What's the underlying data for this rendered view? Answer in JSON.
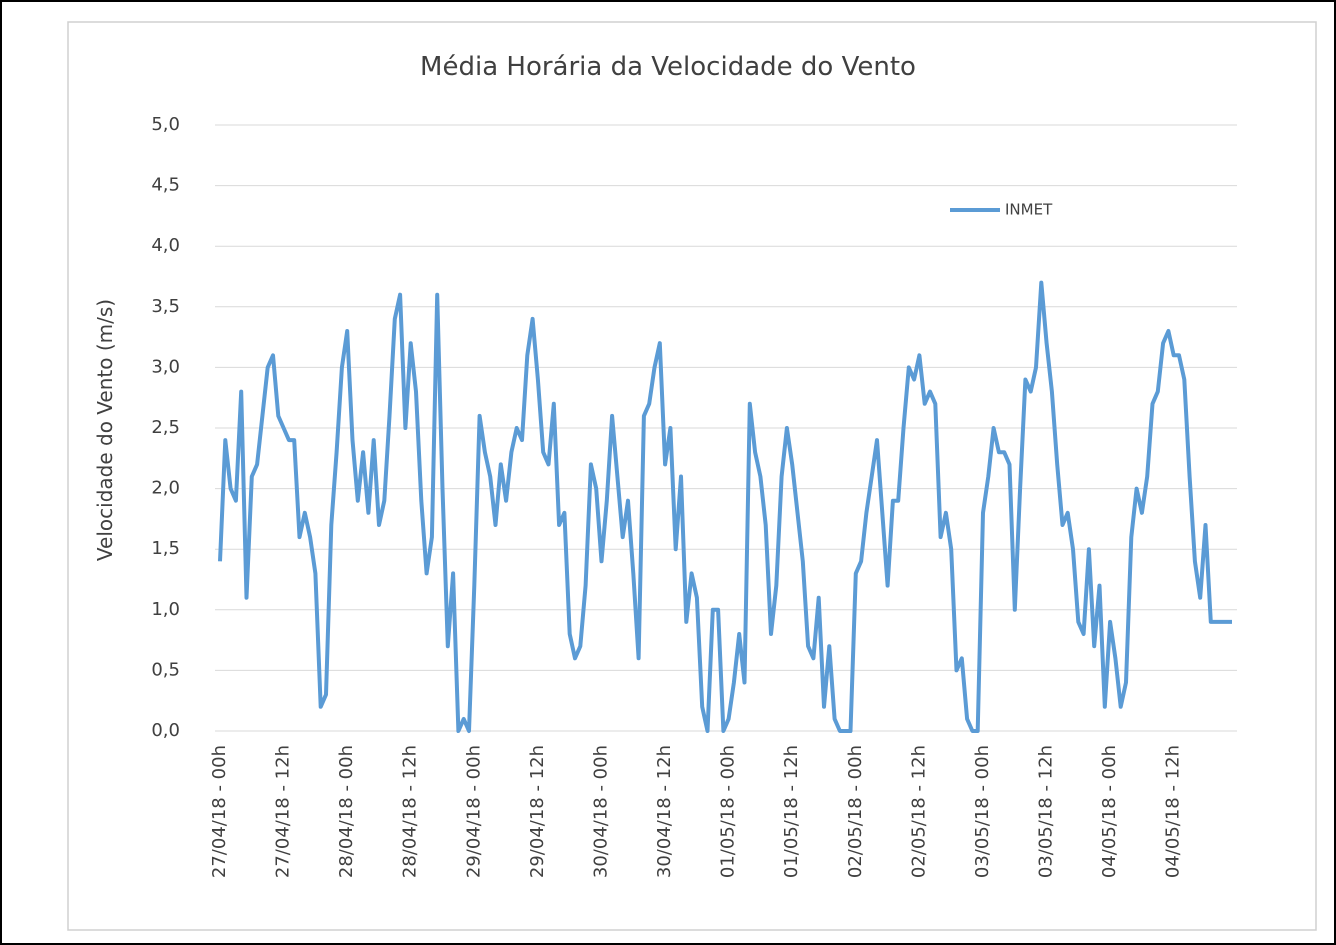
{
  "chart_data": {
    "type": "line",
    "title": "Média Horária da Velocidade do Vento",
    "y_label": "Velocidade do Vento (m/s)",
    "categories": [
      "27/04/18 - 00h",
      null,
      null,
      null,
      null,
      null,
      null,
      null,
      null,
      null,
      null,
      null,
      "27/04/18 - 12h",
      null,
      null,
      null,
      null,
      null,
      null,
      null,
      null,
      null,
      null,
      null,
      "28/04/18 - 00h",
      null,
      null,
      null,
      null,
      null,
      null,
      null,
      null,
      null,
      null,
      null,
      "28/04/18 - 12h",
      null,
      null,
      null,
      null,
      null,
      null,
      null,
      null,
      null,
      null,
      null,
      "29/04/18 - 00h",
      null,
      null,
      null,
      null,
      null,
      null,
      null,
      null,
      null,
      null,
      null,
      "29/04/18 - 12h",
      null,
      null,
      null,
      null,
      null,
      null,
      null,
      null,
      null,
      null,
      null,
      "30/04/18 - 00h",
      null,
      null,
      null,
      null,
      null,
      null,
      null,
      null,
      null,
      null,
      null,
      "30/04/18 - 12h",
      null,
      null,
      null,
      null,
      null,
      null,
      null,
      null,
      null,
      null,
      null,
      "01/05/18 - 00h",
      null,
      null,
      null,
      null,
      null,
      null,
      null,
      null,
      null,
      null,
      null,
      "01/05/18 - 12h",
      null,
      null,
      null,
      null,
      null,
      null,
      null,
      null,
      null,
      null,
      null,
      "02/05/18 - 00h",
      null,
      null,
      null,
      null,
      null,
      null,
      null,
      null,
      null,
      null,
      null,
      "02/05/18 - 12h",
      null,
      null,
      null,
      null,
      null,
      null,
      null,
      null,
      null,
      null,
      null,
      "03/05/18 - 00h",
      null,
      null,
      null,
      null,
      null,
      null,
      null,
      null,
      null,
      null,
      null,
      "03/05/18 - 12h",
      null,
      null,
      null,
      null,
      null,
      null,
      null,
      null,
      null,
      null,
      null,
      "04/05/18 - 00h",
      null,
      null,
      null,
      null,
      null,
      null,
      null,
      null,
      null,
      null,
      null,
      "04/05/18 - 12h",
      null,
      null,
      null,
      null,
      null,
      null,
      null,
      null,
      null,
      null,
      null
    ],
    "series": [
      {
        "name": "INMET",
        "color": "#5b9bd5",
        "values": [
          1.4,
          2.4,
          2.0,
          1.9,
          2.8,
          1.1,
          2.1,
          2.2,
          2.6,
          3.0,
          3.1,
          2.6,
          2.5,
          2.4,
          2.4,
          1.6,
          1.8,
          1.6,
          1.3,
          0.2,
          0.3,
          1.7,
          2.3,
          3.0,
          3.3,
          2.4,
          1.9,
          2.3,
          1.8,
          2.4,
          1.7,
          1.9,
          2.6,
          3.4,
          3.6,
          2.5,
          3.2,
          2.8,
          1.9,
          1.3,
          1.6,
          3.6,
          2.0,
          0.7,
          1.3,
          0.0,
          0.1,
          0.0,
          1.2,
          2.6,
          2.3,
          2.1,
          1.7,
          2.2,
          1.9,
          2.3,
          2.5,
          2.4,
          3.1,
          3.4,
          2.9,
          2.3,
          2.2,
          2.7,
          1.7,
          1.8,
          0.8,
          0.6,
          0.7,
          1.2,
          2.2,
          2.0,
          1.4,
          1.9,
          2.6,
          2.1,
          1.6,
          1.9,
          1.3,
          0.6,
          2.6,
          2.7,
          3.0,
          3.2,
          2.2,
          2.5,
          1.5,
          2.1,
          0.9,
          1.3,
          1.1,
          0.2,
          0.0,
          1.0,
          1.0,
          0.0,
          0.1,
          0.4,
          0.8,
          0.4,
          2.7,
          2.3,
          2.1,
          1.7,
          0.8,
          1.2,
          2.1,
          2.5,
          2.2,
          1.8,
          1.4,
          0.7,
          0.6,
          1.1,
          0.2,
          0.7,
          0.1,
          0.0,
          0.0,
          0.0,
          1.3,
          1.4,
          1.8,
          2.1,
          2.4,
          1.8,
          1.2,
          1.9,
          1.9,
          2.5,
          3.0,
          2.9,
          3.1,
          2.7,
          2.8,
          2.7,
          1.6,
          1.8,
          1.5,
          0.5,
          0.6,
          0.1,
          0.0,
          0.0,
          1.8,
          2.1,
          2.5,
          2.3,
          2.3,
          2.2,
          1.0,
          2.0,
          2.9,
          2.8,
          3.0,
          3.7,
          3.2,
          2.8,
          2.2,
          1.7,
          1.8,
          1.5,
          0.9,
          0.8,
          1.5,
          0.7,
          1.2,
          0.2,
          0.9,
          0.6,
          0.2,
          0.4,
          1.6,
          2.0,
          1.8,
          2.1,
          2.7,
          2.8,
          3.2,
          3.3,
          3.1,
          3.1,
          2.9,
          2.1,
          1.4,
          1.1,
          1.7,
          0.9,
          0.9,
          0.9,
          0.9,
          0.9
        ]
      }
    ],
    "ylim": [
      0,
      5
    ],
    "yticks": [
      {
        "value": 0,
        "label": "0,0"
      },
      {
        "value": 0.5,
        "label": "0,5"
      },
      {
        "value": 1,
        "label": "1,0"
      },
      {
        "value": 1.5,
        "label": "1,5"
      },
      {
        "value": 2,
        "label": "2,0"
      },
      {
        "value": 2.5,
        "label": "2,5"
      },
      {
        "value": 3,
        "label": "3,0"
      },
      {
        "value": 3.5,
        "label": "3,5"
      },
      {
        "value": 4,
        "label": "4,0"
      },
      {
        "value": 4.5,
        "label": "4,5"
      },
      {
        "value": 5,
        "label": "5,0"
      }
    ],
    "grid": true,
    "legend": "upper right"
  }
}
